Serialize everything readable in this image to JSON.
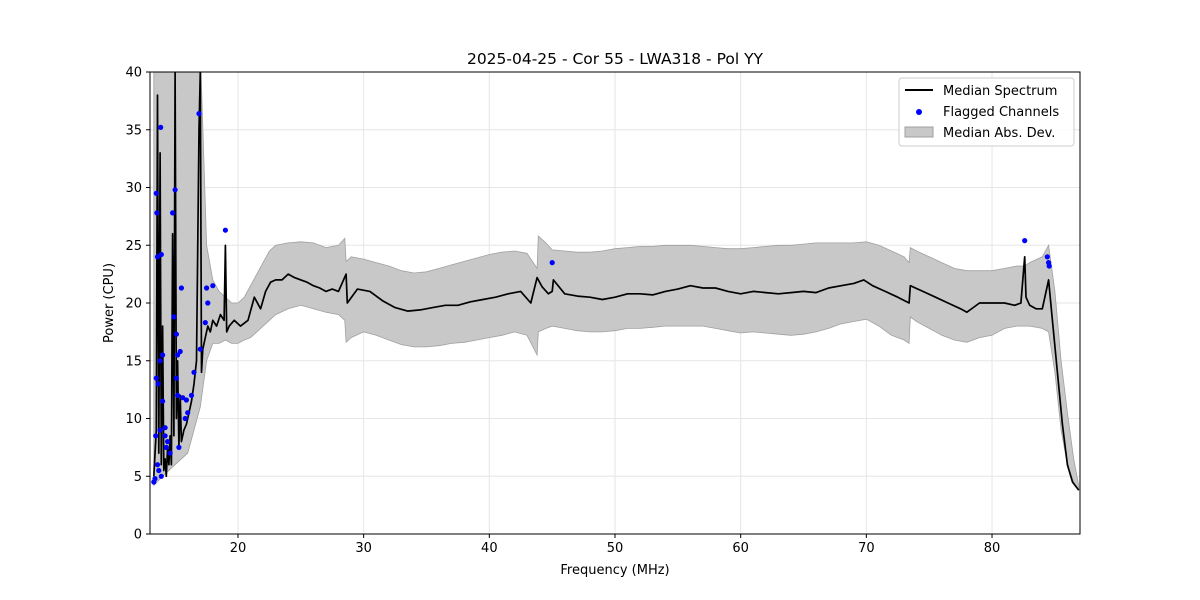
{
  "chart_data": {
    "type": "line",
    "title": "2025-04-25 - Cor 55 - LWA318 - Pol YY",
    "xlabel": "Frequency (MHz)",
    "ylabel": "Power (CPU)",
    "xlim": [
      13,
      87
    ],
    "ylim": [
      0,
      40
    ],
    "xticks": [
      20,
      30,
      40,
      50,
      60,
      70,
      80
    ],
    "yticks": [
      0,
      5,
      10,
      15,
      20,
      25,
      30,
      35,
      40
    ],
    "grid": true,
    "legend_position": "top-right",
    "colors": {
      "median": "#000000",
      "flagged": "#0000ff",
      "mad_fill": "#c8c8c8",
      "mad_edge": "#a0a0a0"
    },
    "series": [
      {
        "name": "Median Spectrum",
        "kind": "line",
        "x": [
          13.3,
          13.5,
          13.6,
          13.7,
          13.8,
          13.9,
          14.0,
          14.1,
          14.2,
          14.3,
          14.4,
          14.5,
          14.6,
          14.7,
          14.8,
          14.9,
          15.0,
          15.1,
          15.2,
          15.3,
          15.4,
          15.5,
          15.7,
          15.9,
          16.1,
          16.3,
          16.5,
          16.7,
          16.9,
          17.0,
          17.1,
          17.2,
          17.4,
          17.6,
          17.8,
          18.0,
          18.3,
          18.6,
          18.9,
          19.0,
          19.1,
          19.3,
          19.7,
          20.2,
          20.8,
          21.3,
          21.8,
          22.2,
          22.6,
          23.0,
          23.5,
          24.0,
          24.5,
          25.0,
          25.5,
          26.0,
          26.5,
          27.0,
          27.5,
          28.0,
          28.6,
          28.7,
          29.5,
          30.5,
          31.5,
          32.5,
          33.5,
          34.5,
          35.5,
          36.5,
          37.5,
          38.5,
          39.5,
          40.5,
          41.5,
          42.5,
          43.3,
          43.8,
          44.2,
          44.7,
          45.0,
          45.1,
          46.0,
          47.0,
          48.0,
          49.0,
          50.0,
          51.0,
          52.0,
          53.0,
          54.0,
          55.0,
          56.0,
          57.0,
          58.0,
          59.0,
          60.0,
          61.0,
          62.0,
          63.0,
          64.0,
          65.0,
          66.0,
          67.0,
          68.0,
          69.0,
          69.8,
          70.5,
          71.5,
          72.5,
          73.4,
          73.5,
          74.5,
          75.5,
          76.5,
          77.5,
          78.0,
          79.0,
          80.0,
          81.0,
          81.8,
          82.3,
          82.6,
          82.7,
          83.0,
          83.5,
          84.0,
          84.3,
          84.5,
          84.8,
          85.2,
          85.6,
          86.0,
          86.4,
          86.9
        ],
        "y": [
          5.0,
          9.0,
          38.0,
          7.0,
          33.0,
          6.0,
          18.0,
          5.5,
          6.5,
          5.0,
          7.5,
          6.0,
          8.5,
          6.0,
          26.0,
          8.5,
          40.0,
          10.0,
          15.0,
          7.5,
          12.0,
          8.0,
          9.0,
          9.5,
          10.5,
          11.5,
          13.0,
          15.0,
          35.0,
          40.0,
          14.0,
          16.0,
          17.0,
          18.0,
          17.5,
          18.5,
          18.0,
          19.0,
          18.5,
          25.0,
          17.5,
          18.0,
          18.5,
          18.0,
          18.5,
          20.5,
          19.5,
          21.0,
          21.8,
          22.0,
          22.0,
          22.5,
          22.2,
          22.0,
          21.8,
          21.5,
          21.3,
          21.0,
          21.2,
          21.0,
          22.5,
          20.0,
          21.2,
          21.0,
          20.2,
          19.6,
          19.3,
          19.4,
          19.6,
          19.8,
          19.8,
          20.1,
          20.3,
          20.5,
          20.8,
          21.0,
          20.0,
          22.2,
          21.4,
          20.8,
          21.0,
          22.0,
          20.8,
          20.6,
          20.5,
          20.3,
          20.5,
          20.8,
          20.8,
          20.7,
          21.0,
          21.2,
          21.5,
          21.3,
          21.3,
          21.0,
          20.8,
          21.0,
          20.9,
          20.8,
          20.9,
          21.0,
          20.9,
          21.3,
          21.5,
          21.7,
          22.0,
          21.5,
          21.0,
          20.5,
          20.0,
          21.5,
          21.0,
          20.5,
          20.0,
          19.5,
          19.2,
          20.0,
          20.0,
          20.0,
          19.8,
          20.0,
          24.0,
          20.5,
          19.8,
          19.5,
          19.5,
          21.0,
          22.0,
          18.5,
          14.0,
          9.5,
          6.0,
          4.5,
          3.8
        ]
      },
      {
        "name": "Flagged Channels",
        "kind": "scatter",
        "x": [
          13.3,
          13.4,
          13.45,
          13.5,
          13.5,
          13.55,
          13.6,
          13.6,
          13.65,
          13.7,
          13.8,
          13.8,
          13.85,
          13.9,
          13.9,
          14.0,
          14.0,
          14.2,
          14.2,
          14.3,
          14.4,
          14.6,
          14.8,
          14.9,
          15.0,
          15.1,
          15.1,
          15.2,
          15.2,
          15.3,
          15.4,
          15.5,
          15.6,
          15.8,
          15.9,
          16.0,
          16.3,
          16.5,
          16.9,
          17.0,
          17.4,
          17.5,
          17.6,
          18.0,
          19.0,
          45.0,
          82.6,
          84.4,
          84.5,
          84.55
        ],
        "y": [
          4.5,
          4.8,
          8.5,
          13.5,
          29.5,
          27.8,
          24.0,
          6.0,
          13.0,
          5.5,
          9.0,
          15.0,
          35.2,
          24.2,
          5.0,
          11.5,
          15.5,
          9.2,
          8.5,
          7.5,
          8.0,
          7.0,
          27.8,
          18.8,
          29.8,
          13.5,
          17.3,
          12.0,
          15.5,
          7.5,
          15.8,
          21.3,
          11.8,
          10.0,
          11.6,
          10.5,
          12.0,
          14.0,
          36.4,
          16.0,
          18.3,
          21.3,
          20.0,
          21.5,
          26.3,
          23.5,
          25.4,
          24.0,
          23.5,
          23.2
        ]
      },
      {
        "name": "Median Abs. Dev.",
        "kind": "band",
        "x": [
          13.3,
          14.0,
          15.0,
          16.0,
          17.0,
          17.5,
          18.0,
          18.5,
          19.0,
          19.5,
          20.0,
          20.5,
          21.0,
          21.5,
          22.0,
          22.5,
          23.0,
          24.0,
          25.0,
          26.0,
          27.0,
          28.0,
          28.5,
          28.6,
          29.0,
          30.0,
          31.0,
          32.0,
          33.0,
          34.0,
          35.0,
          36.0,
          37.0,
          38.0,
          39.0,
          40.0,
          41.0,
          42.0,
          43.0,
          43.8,
          43.9,
          44.5,
          45.0,
          46.0,
          47.0,
          48.0,
          49.0,
          50.0,
          51.0,
          52.0,
          53.0,
          54.0,
          55.0,
          56.0,
          57.0,
          58.0,
          59.0,
          60.0,
          61.0,
          62.0,
          63.0,
          64.0,
          65.0,
          66.0,
          67.0,
          68.0,
          69.0,
          70.0,
          71.0,
          72.0,
          73.0,
          73.4,
          73.5,
          74.0,
          75.0,
          76.0,
          77.0,
          78.0,
          79.0,
          80.0,
          81.0,
          82.0,
          82.6,
          83.0,
          84.0,
          84.5,
          85.0,
          85.5,
          86.0,
          86.5,
          86.9
        ],
        "lower": [
          4.2,
          5.0,
          6.0,
          7.0,
          11.0,
          15.0,
          16.5,
          16.5,
          16.8,
          16.5,
          16.5,
          16.8,
          17.0,
          17.5,
          18.0,
          18.5,
          19.0,
          19.5,
          19.8,
          19.5,
          19.2,
          19.0,
          18.5,
          16.6,
          17.0,
          17.5,
          17.2,
          16.8,
          16.4,
          16.2,
          16.2,
          16.3,
          16.5,
          16.6,
          16.8,
          17.0,
          17.2,
          17.5,
          17.2,
          15.5,
          17.5,
          17.8,
          18.0,
          17.8,
          17.6,
          17.5,
          17.5,
          17.6,
          17.8,
          17.8,
          17.9,
          18.0,
          18.0,
          18.0,
          18.0,
          17.8,
          17.6,
          17.4,
          17.5,
          17.4,
          17.3,
          17.2,
          17.3,
          17.5,
          17.8,
          18.2,
          18.4,
          18.6,
          18.0,
          17.2,
          16.8,
          16.5,
          18.8,
          18.4,
          17.8,
          17.2,
          16.8,
          16.6,
          17.0,
          17.2,
          17.8,
          18.0,
          18.0,
          18.0,
          17.8,
          17.5,
          14.0,
          9.0,
          6.0,
          4.5,
          3.8
        ],
        "upper": [
          42.0,
          42.0,
          42.0,
          42.0,
          42.0,
          25.0,
          22.0,
          21.0,
          20.5,
          20.0,
          20.0,
          20.5,
          21.5,
          22.5,
          23.5,
          24.5,
          25.0,
          25.2,
          25.3,
          25.2,
          24.8,
          25.0,
          25.6,
          23.6,
          24.0,
          23.8,
          23.5,
          23.2,
          22.8,
          22.6,
          22.7,
          23.0,
          23.3,
          23.6,
          23.9,
          24.2,
          24.4,
          24.5,
          24.3,
          23.0,
          25.8,
          25.2,
          24.6,
          24.5,
          24.4,
          24.4,
          24.5,
          24.7,
          24.8,
          24.9,
          24.9,
          25.0,
          25.0,
          25.0,
          24.9,
          24.8,
          24.7,
          24.7,
          24.8,
          24.9,
          25.0,
          25.0,
          25.1,
          25.2,
          25.2,
          25.2,
          25.2,
          25.3,
          25.0,
          24.5,
          24.0,
          23.5,
          24.8,
          24.5,
          24.0,
          23.5,
          23.0,
          22.8,
          22.8,
          22.8,
          23.0,
          23.2,
          23.2,
          23.5,
          24.0,
          25.0,
          21.0,
          15.0,
          10.5,
          6.5,
          4.2
        ]
      }
    ]
  }
}
